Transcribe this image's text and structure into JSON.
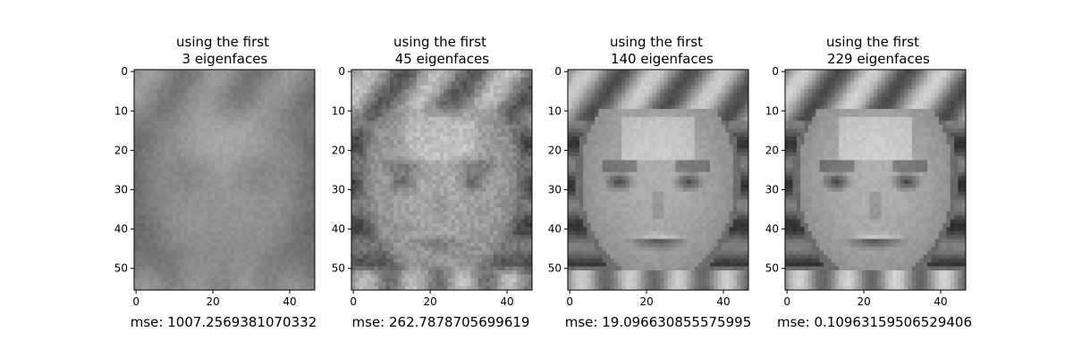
{
  "panels": [
    {
      "title_line1": "using the first",
      "title_line2": " 3 eigenfaces",
      "mse": "mse: 1007.2569381070332",
      "blur": 3.0,
      "contrast": 0.55
    },
    {
      "title_line1": "using the first",
      "title_line2": " 45 eigenfaces",
      "mse": "mse: 262.7878705699619",
      "blur": 1.1,
      "contrast": 0.9
    },
    {
      "title_line1": "using the first",
      "title_line2": " 140 eigenfaces",
      "mse": "mse: 19.096630855575995",
      "blur": 0.35,
      "contrast": 1.0
    },
    {
      "title_line1": "using the first",
      "title_line2": " 229 eigenfaces",
      "mse": "mse: 0.10963159506529406",
      "blur": 0.0,
      "contrast": 1.05
    }
  ],
  "x_ticks": [
    "0",
    "20",
    "40"
  ],
  "x_tick_values": [
    0,
    20,
    40
  ],
  "y_ticks": [
    "0",
    "10",
    "20",
    "30",
    "40",
    "50"
  ],
  "y_tick_values": [
    0,
    10,
    20,
    30,
    40,
    50
  ],
  "image_cols": 47,
  "image_rows": 56,
  "colormap": "gray"
}
